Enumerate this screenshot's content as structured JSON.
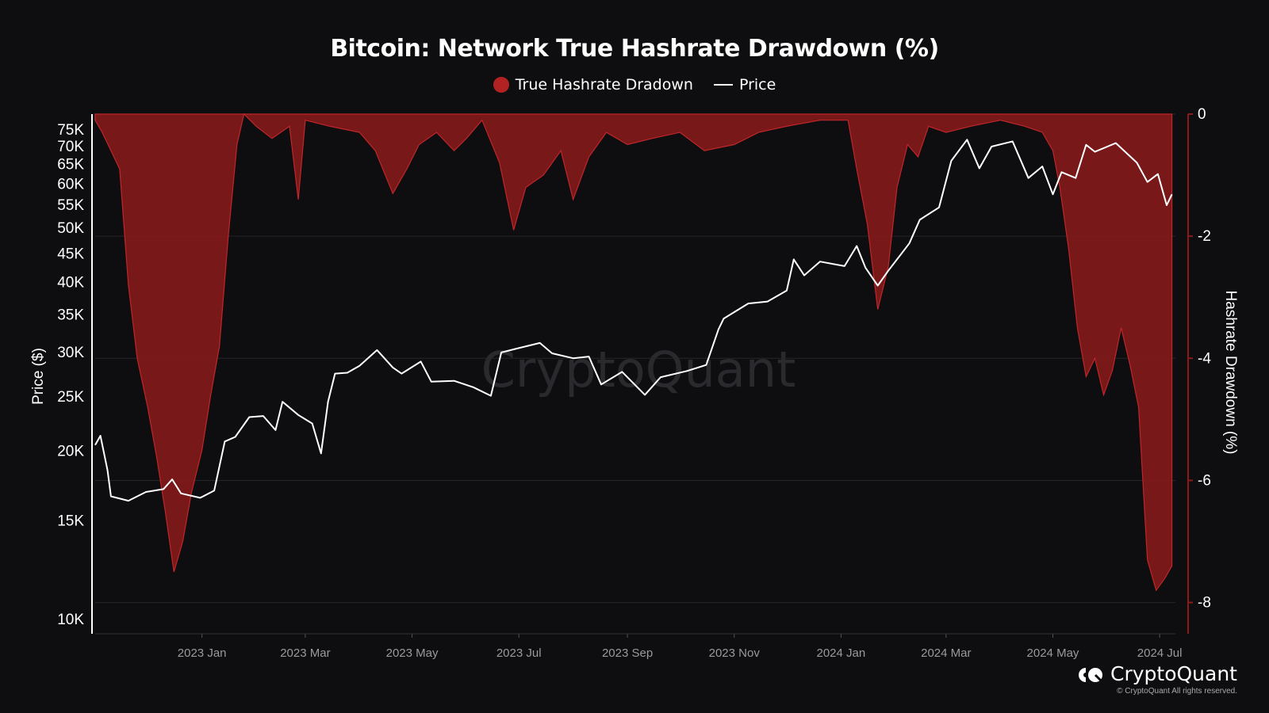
{
  "title": "Bitcoin: Network True Hashrate Drawdown (%)",
  "legend": [
    {
      "label": "True Hashrate Dradown",
      "color": "#b22222",
      "marker": "circle"
    },
    {
      "label": "Price",
      "color": "#ffffff",
      "marker": "line"
    }
  ],
  "watermark": "CryptoQuant",
  "brand": {
    "name": "CryptoQuant",
    "icon": "cryptoquant-logo-icon",
    "copyright": "© CryptoQuant All rights reserved."
  },
  "chart_data": {
    "type": "area",
    "title": "Bitcoin: Network True Hashrate Drawdown (%)",
    "x_ticks": [
      "2023 Jan",
      "2023 Mar",
      "2023 May",
      "2023 Jul",
      "2023 Sep",
      "2023 Nov",
      "2024 Jan",
      "2024 Mar",
      "2024 May",
      "2024 Jul"
    ],
    "x_range": [
      "2022-11-01",
      "2024-07-10"
    ],
    "left_axis": {
      "label": "Price ($)",
      "scale": "log",
      "range": [
        10000,
        80000
      ],
      "ticks": [
        {
          "v": 75000,
          "t": "75K"
        },
        {
          "v": 70000,
          "t": "70K"
        },
        {
          "v": 65000,
          "t": "65K"
        },
        {
          "v": 60000,
          "t": "60K"
        },
        {
          "v": 55000,
          "t": "55K"
        },
        {
          "v": 50000,
          "t": "50K"
        },
        {
          "v": 45000,
          "t": "45K"
        },
        {
          "v": 40000,
          "t": "40K"
        },
        {
          "v": 35000,
          "t": "35K"
        },
        {
          "v": 30000,
          "t": "30K"
        },
        {
          "v": 25000,
          "t": "25K"
        },
        {
          "v": 20000,
          "t": "20K"
        },
        {
          "v": 15000,
          "t": "15K"
        },
        {
          "v": 10000,
          "t": "10K"
        }
      ]
    },
    "right_axis": {
      "label": "Hashrate Drawdown (%)",
      "scale": "linear",
      "range": [
        -8.2,
        0
      ],
      "ticks": [
        {
          "v": 0,
          "t": "0"
        },
        {
          "v": -2,
          "t": "-2"
        },
        {
          "v": -4,
          "t": "-4"
        },
        {
          "v": -6,
          "t": "-6"
        },
        {
          "v": -8,
          "t": "-8"
        }
      ]
    },
    "grid": true,
    "legend_position": "top-center",
    "series": [
      {
        "name": "True Hashrate Dradown",
        "axis": "right",
        "color": "#8b1a1a",
        "points": [
          [
            "2022-11-01",
            -0.1
          ],
          [
            "2022-11-05",
            -0.3
          ],
          [
            "2022-11-10",
            -0.6
          ],
          [
            "2022-11-15",
            -0.9
          ],
          [
            "2022-11-20",
            -2.8
          ],
          [
            "2022-11-25",
            -4.0
          ],
          [
            "2022-12-01",
            -4.8
          ],
          [
            "2022-12-06",
            -5.6
          ],
          [
            "2022-12-11",
            -6.5
          ],
          [
            "2022-12-16",
            -7.5
          ],
          [
            "2022-12-21",
            -7.0
          ],
          [
            "2022-12-26",
            -6.2
          ],
          [
            "2023-01-01",
            -5.5
          ],
          [
            "2023-01-06",
            -4.6
          ],
          [
            "2023-01-11",
            -3.8
          ],
          [
            "2023-01-16",
            -2.0
          ],
          [
            "2023-01-21",
            -0.5
          ],
          [
            "2023-01-25",
            0
          ],
          [
            "2023-02-01",
            -0.2
          ],
          [
            "2023-02-10",
            -0.4
          ],
          [
            "2023-02-20",
            -0.2
          ],
          [
            "2023-02-25",
            -1.4
          ],
          [
            "2023-03-01",
            -0.1
          ],
          [
            "2023-03-15",
            -0.2
          ],
          [
            "2023-04-01",
            -0.3
          ],
          [
            "2023-04-10",
            -0.6
          ],
          [
            "2023-04-20",
            -1.3
          ],
          [
            "2023-04-28",
            -0.9
          ],
          [
            "2023-05-05",
            -0.5
          ],
          [
            "2023-05-15",
            -0.3
          ],
          [
            "2023-05-25",
            -0.6
          ],
          [
            "2023-06-01",
            -0.4
          ],
          [
            "2023-06-10",
            -0.1
          ],
          [
            "2023-06-20",
            -0.8
          ],
          [
            "2023-06-28",
            -1.9
          ],
          [
            "2023-07-05",
            -1.2
          ],
          [
            "2023-07-15",
            -1.0
          ],
          [
            "2023-07-25",
            -0.6
          ],
          [
            "2023-08-01",
            -1.4
          ],
          [
            "2023-08-10",
            -0.7
          ],
          [
            "2023-08-20",
            -0.3
          ],
          [
            "2023-09-01",
            -0.5
          ],
          [
            "2023-09-15",
            -0.4
          ],
          [
            "2023-10-01",
            -0.3
          ],
          [
            "2023-10-15",
            -0.6
          ],
          [
            "2023-11-01",
            -0.5
          ],
          [
            "2023-11-15",
            -0.3
          ],
          [
            "2023-12-01",
            -0.2
          ],
          [
            "2023-12-20",
            -0.1
          ],
          [
            "2024-01-05",
            -0.1
          ],
          [
            "2024-01-10",
            -0.9
          ],
          [
            "2024-01-16",
            -1.8
          ],
          [
            "2024-01-22",
            -3.2
          ],
          [
            "2024-01-28",
            -2.5
          ],
          [
            "2024-02-02",
            -1.2
          ],
          [
            "2024-02-08",
            -0.5
          ],
          [
            "2024-02-14",
            -0.7
          ],
          [
            "2024-02-20",
            -0.2
          ],
          [
            "2024-03-01",
            -0.3
          ],
          [
            "2024-03-15",
            -0.2
          ],
          [
            "2024-04-01",
            -0.1
          ],
          [
            "2024-04-15",
            -0.2
          ],
          [
            "2024-04-25",
            -0.3
          ],
          [
            "2024-05-01",
            -0.6
          ],
          [
            "2024-05-05",
            -1.2
          ],
          [
            "2024-05-10",
            -2.2
          ],
          [
            "2024-05-15",
            -3.5
          ],
          [
            "2024-05-20",
            -4.3
          ],
          [
            "2024-05-25",
            -4.0
          ],
          [
            "2024-05-30",
            -4.6
          ],
          [
            "2024-06-04",
            -4.2
          ],
          [
            "2024-06-09",
            -3.5
          ],
          [
            "2024-06-14",
            -4.1
          ],
          [
            "2024-06-19",
            -4.8
          ],
          [
            "2024-06-24",
            -7.3
          ],
          [
            "2024-06-29",
            -7.8
          ],
          [
            "2024-07-04",
            -7.6
          ],
          [
            "2024-07-08",
            -7.4
          ]
        ]
      },
      {
        "name": "Price",
        "axis": "left",
        "color": "#ffffff",
        "points": [
          [
            "2022-11-01",
            20500
          ],
          [
            "2022-11-04",
            21300
          ],
          [
            "2022-11-08",
            18500
          ],
          [
            "2022-11-10",
            16600
          ],
          [
            "2022-11-20",
            16300
          ],
          [
            "2022-11-30",
            16900
          ],
          [
            "2022-12-10",
            17100
          ],
          [
            "2022-12-15",
            17800
          ],
          [
            "2022-12-20",
            16800
          ],
          [
            "2022-12-31",
            16500
          ],
          [
            "2023-01-08",
            17000
          ],
          [
            "2023-01-14",
            20800
          ],
          [
            "2023-01-20",
            21200
          ],
          [
            "2023-01-28",
            23000
          ],
          [
            "2023-02-05",
            23100
          ],
          [
            "2023-02-12",
            21800
          ],
          [
            "2023-02-16",
            24500
          ],
          [
            "2023-02-25",
            23200
          ],
          [
            "2023-03-05",
            22400
          ],
          [
            "2023-03-10",
            19800
          ],
          [
            "2023-03-14",
            24500
          ],
          [
            "2023-03-18",
            27500
          ],
          [
            "2023-03-25",
            27600
          ],
          [
            "2023-04-01",
            28400
          ],
          [
            "2023-04-11",
            30300
          ],
          [
            "2023-04-20",
            28200
          ],
          [
            "2023-04-25",
            27500
          ],
          [
            "2023-05-06",
            28900
          ],
          [
            "2023-05-12",
            26600
          ],
          [
            "2023-05-25",
            26700
          ],
          [
            "2023-06-05",
            26000
          ],
          [
            "2023-06-15",
            25100
          ],
          [
            "2023-06-21",
            30000
          ],
          [
            "2023-06-30",
            30500
          ],
          [
            "2023-07-13",
            31200
          ],
          [
            "2023-07-20",
            29900
          ],
          [
            "2023-08-01",
            29300
          ],
          [
            "2023-08-10",
            29500
          ],
          [
            "2023-08-17",
            26300
          ],
          [
            "2023-08-29",
            27700
          ],
          [
            "2023-09-11",
            25200
          ],
          [
            "2023-09-20",
            27100
          ],
          [
            "2023-10-05",
            27800
          ],
          [
            "2023-10-16",
            28500
          ],
          [
            "2023-10-23",
            33000
          ],
          [
            "2023-10-26",
            34500
          ],
          [
            "2023-11-09",
            36700
          ],
          [
            "2023-11-20",
            37000
          ],
          [
            "2023-12-01",
            38700
          ],
          [
            "2023-12-05",
            44000
          ],
          [
            "2023-12-11",
            41200
          ],
          [
            "2023-12-20",
            43600
          ],
          [
            "2024-01-03",
            42800
          ],
          [
            "2024-01-10",
            46500
          ],
          [
            "2024-01-15",
            42500
          ],
          [
            "2024-01-22",
            39500
          ],
          [
            "2024-01-28",
            42000
          ],
          [
            "2024-02-09",
            47000
          ],
          [
            "2024-02-15",
            51800
          ],
          [
            "2024-02-26",
            54500
          ],
          [
            "2024-03-04",
            66000
          ],
          [
            "2024-03-13",
            72000
          ],
          [
            "2024-03-20",
            64000
          ],
          [
            "2024-03-27",
            70000
          ],
          [
            "2024-04-08",
            71500
          ],
          [
            "2024-04-17",
            61500
          ],
          [
            "2024-04-25",
            64500
          ],
          [
            "2024-05-01",
            57500
          ],
          [
            "2024-05-06",
            63000
          ],
          [
            "2024-05-14",
            61500
          ],
          [
            "2024-05-20",
            70500
          ],
          [
            "2024-05-25",
            68500
          ],
          [
            "2024-06-06",
            71000
          ],
          [
            "2024-06-18",
            65500
          ],
          [
            "2024-06-24",
            60500
          ],
          [
            "2024-06-30",
            62500
          ],
          [
            "2024-07-05",
            55000
          ],
          [
            "2024-07-08",
            57500
          ]
        ]
      }
    ]
  }
}
